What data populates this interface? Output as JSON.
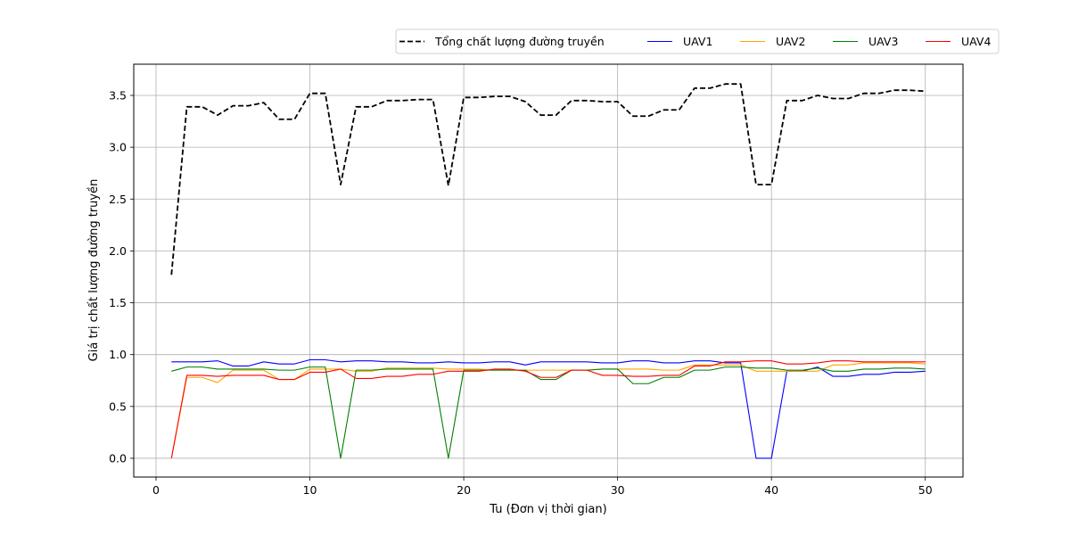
{
  "chart_data": {
    "type": "line",
    "title": "",
    "xlabel": "Tu (Đơn vị thời gian)",
    "ylabel": "Giá trị chất lượng đường truyền",
    "xlim": [
      -1.45,
      52.45
    ],
    "ylim": [
      -0.181,
      3.801
    ],
    "xticks": [
      0,
      10,
      20,
      30,
      40,
      50
    ],
    "yticks": [
      0.0,
      0.5,
      1.0,
      1.5,
      2.0,
      2.5,
      3.0,
      3.5
    ],
    "grid": true,
    "legend_position": "top-right, outside above plot",
    "x": [
      1,
      2,
      3,
      4,
      5,
      6,
      7,
      8,
      9,
      10,
      11,
      12,
      13,
      14,
      15,
      16,
      17,
      18,
      19,
      20,
      21,
      22,
      23,
      24,
      25,
      26,
      27,
      28,
      29,
      30,
      31,
      32,
      33,
      34,
      35,
      36,
      37,
      38,
      39,
      40,
      41,
      42,
      43,
      44,
      45,
      46,
      47,
      48,
      49,
      50
    ],
    "series": [
      {
        "name": "Tổng chất lượng đường truyền",
        "color": "#000000",
        "dashed": true,
        "values": [
          1.77,
          3.39,
          3.39,
          3.31,
          3.4,
          3.4,
          3.43,
          3.27,
          3.27,
          3.52,
          3.52,
          2.64,
          3.39,
          3.39,
          3.45,
          3.45,
          3.46,
          3.46,
          2.63,
          3.48,
          3.48,
          3.49,
          3.49,
          3.44,
          3.31,
          3.31,
          3.45,
          3.45,
          3.44,
          3.44,
          3.3,
          3.3,
          3.36,
          3.36,
          3.57,
          3.57,
          3.61,
          3.61,
          2.64,
          2.64,
          3.45,
          3.45,
          3.5,
          3.47,
          3.47,
          3.52,
          3.52,
          3.55,
          3.55,
          3.54
        ]
      },
      {
        "name": "UAV1",
        "color": "#0000ff",
        "values": [
          0.93,
          0.93,
          0.93,
          0.94,
          0.89,
          0.89,
          0.93,
          0.91,
          0.91,
          0.95,
          0.95,
          0.93,
          0.94,
          0.94,
          0.93,
          0.93,
          0.92,
          0.92,
          0.93,
          0.92,
          0.92,
          0.93,
          0.93,
          0.9,
          0.93,
          0.93,
          0.93,
          0.93,
          0.92,
          0.92,
          0.94,
          0.94,
          0.92,
          0.92,
          0.94,
          0.94,
          0.92,
          0.92,
          0.0,
          0.0,
          0.84,
          0.84,
          0.88,
          0.79,
          0.79,
          0.81,
          0.81,
          0.83,
          0.83,
          0.84
        ]
      },
      {
        "name": "UAV2",
        "color": "#ffa500",
        "values": [
          0.0,
          0.78,
          0.78,
          0.73,
          0.85,
          0.85,
          0.85,
          0.76,
          0.76,
          0.86,
          0.86,
          0.86,
          0.84,
          0.84,
          0.87,
          0.87,
          0.87,
          0.87,
          0.86,
          0.86,
          0.86,
          0.85,
          0.85,
          0.85,
          0.85,
          0.85,
          0.85,
          0.85,
          0.86,
          0.86,
          0.86,
          0.86,
          0.85,
          0.85,
          0.9,
          0.9,
          0.9,
          0.9,
          0.84,
          0.84,
          0.84,
          0.84,
          0.84,
          0.9,
          0.9,
          0.92,
          0.92,
          0.92,
          0.92,
          0.91
        ]
      },
      {
        "name": "UAV3",
        "color": "#008000",
        "values": [
          0.84,
          0.88,
          0.88,
          0.86,
          0.86,
          0.86,
          0.86,
          0.85,
          0.85,
          0.88,
          0.88,
          0.0,
          0.85,
          0.85,
          0.86,
          0.86,
          0.86,
          0.86,
          0.0,
          0.85,
          0.85,
          0.85,
          0.85,
          0.85,
          0.76,
          0.76,
          0.85,
          0.85,
          0.86,
          0.86,
          0.72,
          0.72,
          0.78,
          0.78,
          0.85,
          0.85,
          0.88,
          0.88,
          0.87,
          0.87,
          0.85,
          0.85,
          0.87,
          0.84,
          0.84,
          0.86,
          0.86,
          0.87,
          0.87,
          0.86
        ]
      },
      {
        "name": "UAV4",
        "color": "#ff0000",
        "values": [
          0.0,
          0.8,
          0.8,
          0.79,
          0.8,
          0.8,
          0.8,
          0.76,
          0.76,
          0.83,
          0.83,
          0.86,
          0.77,
          0.77,
          0.79,
          0.79,
          0.81,
          0.81,
          0.84,
          0.84,
          0.84,
          0.86,
          0.86,
          0.84,
          0.78,
          0.78,
          0.85,
          0.85,
          0.8,
          0.8,
          0.79,
          0.79,
          0.8,
          0.8,
          0.89,
          0.89,
          0.93,
          0.93,
          0.94,
          0.94,
          0.91,
          0.91,
          0.92,
          0.94,
          0.94,
          0.93,
          0.93,
          0.93,
          0.93,
          0.93
        ]
      }
    ]
  }
}
